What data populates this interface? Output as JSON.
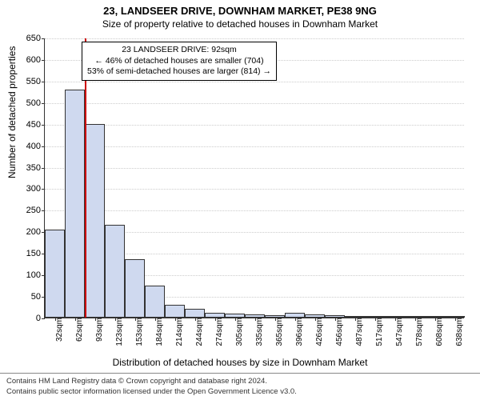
{
  "title": {
    "main": "23, LANDSEER DRIVE, DOWNHAM MARKET, PE38 9NG",
    "sub": "Size of property relative to detached houses in Downham Market"
  },
  "axes": {
    "ylabel": "Number of detached properties",
    "xlabel": "Distribution of detached houses by size in Downham Market",
    "ylim": [
      0,
      650
    ],
    "ytick_step": 50,
    "grid_color": "#cccccc",
    "axis_color": "#333333",
    "label_fontsize": 12,
    "tick_fontsize": 11
  },
  "chart": {
    "type": "histogram",
    "bar_fill": "#cfd9ef",
    "bar_border": "#333333",
    "background": "#ffffff",
    "categories": [
      "32sqm",
      "62sqm",
      "93sqm",
      "123sqm",
      "153sqm",
      "184sqm",
      "214sqm",
      "244sqm",
      "274sqm",
      "305sqm",
      "335sqm",
      "365sqm",
      "396sqm",
      "426sqm",
      "456sqm",
      "487sqm",
      "517sqm",
      "547sqm",
      "578sqm",
      "608sqm",
      "638sqm"
    ],
    "values": [
      205,
      530,
      450,
      215,
      135,
      75,
      30,
      20,
      12,
      10,
      8,
      5,
      12,
      8,
      5,
      2,
      4,
      2,
      2,
      2,
      2
    ]
  },
  "marker": {
    "color": "#cc0000",
    "width": 2,
    "position_category_index": 1,
    "position_fraction_within": 0.98
  },
  "annotation": {
    "line1": "23 LANDSEER DRIVE: 92sqm",
    "line2": "← 46% of detached houses are smaller (704)",
    "line3": "53% of semi-detached houses are larger (814) →",
    "border_color": "#000000",
    "background": "#ffffff",
    "fontsize": 10.5
  },
  "footer": {
    "line1": "Contains HM Land Registry data © Crown copyright and database right 2024.",
    "line2": "Contains public sector information licensed under the Open Government Licence v3.0.",
    "border_color": "#888888",
    "fontsize": 9.5
  }
}
